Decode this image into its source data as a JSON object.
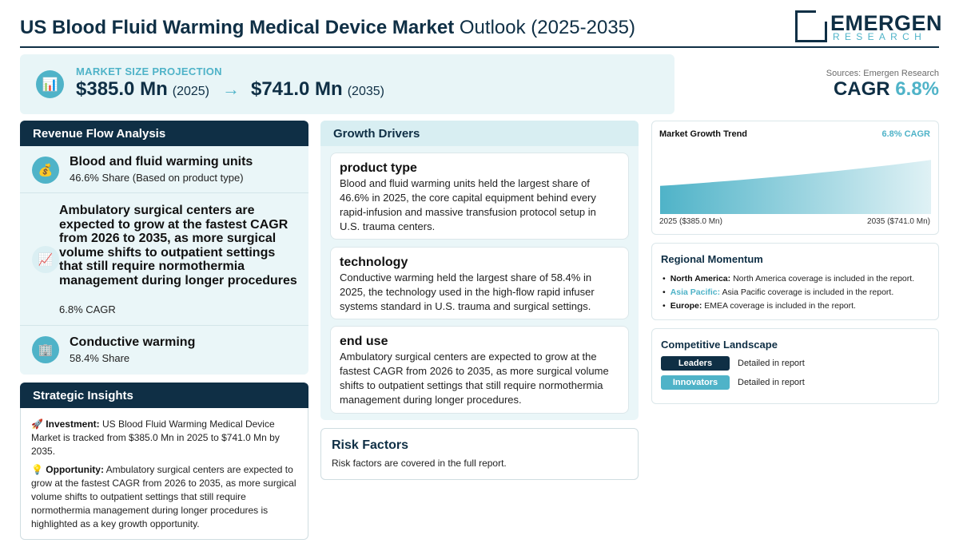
{
  "header": {
    "title_bold": "US Blood Fluid Warming Medical Device Market",
    "title_rest": " Outlook (2025-2035)",
    "logo_name": "EMERGEN",
    "logo_sub": "RESEARCH"
  },
  "hero": {
    "icon": "bar-chart-icon",
    "label": "MARKET SIZE PROJECTION",
    "start_value": "$385.0 Mn",
    "start_year": "(2025)",
    "arrow": "→",
    "end_value": "$741.0 Mn",
    "end_year": "(2035)"
  },
  "summary": {
    "source": "Sources: Emergen Research",
    "cagr_label": "CAGR ",
    "cagr_value": "6.8%"
  },
  "revenue": {
    "heading": "Revenue Flow Analysis",
    "items": [
      {
        "icon": "money-bag-icon",
        "title": "Blood and fluid warming units",
        "sub": "46.6% Share (Based on product type)"
      },
      {
        "icon": "trend-chart-icon",
        "title": "Ambulatory surgical centers are expected to grow at the fastest CAGR from 2026 to 2035, as more surgical volume shifts to outpatient settings that still require normothermia management during longer procedures",
        "sub": "6.8% CAGR"
      },
      {
        "icon": "building-icon",
        "title": "Conductive warming",
        "sub": "58.4% Share"
      }
    ]
  },
  "strategic": {
    "heading": "Strategic Insights",
    "items": [
      {
        "emoji": "🚀",
        "label": "Investment:",
        "text": " US Blood Fluid Warming Medical Device Market is tracked from $385.0 Mn in 2025 to $741.0 Mn by 2035."
      },
      {
        "emoji": "💡",
        "label": "Opportunity:",
        "text": " Ambulatory surgical centers are expected to grow at the fastest CAGR from 2026 to 2035, as more surgical volume shifts to outpatient settings that still require normothermia management during longer procedures is highlighted as a key growth opportunity."
      }
    ]
  },
  "drivers": {
    "heading": "Growth Drivers",
    "items": [
      {
        "title": "product type",
        "text": "Blood and fluid warming units held the largest share of 46.6% in 2025, the core capital equipment behind every rapid-infusion and massive transfusion protocol setup in U.S. trauma centers."
      },
      {
        "title": "technology",
        "text": "Conductive warming held the largest share of 58.4% in 2025, the technology used in the high-flow rapid infuser systems standard in U.S. trauma and surgical settings."
      },
      {
        "title": "end use",
        "text": "Ambulatory surgical centers are expected to grow at the fastest CAGR from 2026 to 2035, as more surgical volume shifts to outpatient settings that still require normothermia management during longer procedures."
      }
    ]
  },
  "risk": {
    "heading": "Risk Factors",
    "text": "Risk factors are covered in the full report."
  },
  "trend": {
    "title": "Market Growth Trend",
    "cagr": "6.8% CAGR",
    "start_label": "2025 ($385.0 Mn)",
    "end_label": "2035 ($741.0 Mn)"
  },
  "chart_data": {
    "type": "area",
    "x": [
      2025,
      2035
    ],
    "values": [
      385.0,
      741.0
    ],
    "title": "Market Growth Trend",
    "unit": "Mn",
    "annotations": [
      "6.8% CAGR"
    ]
  },
  "regional": {
    "heading": "Regional Momentum",
    "items": [
      {
        "label": "North America:",
        "text": " North America coverage is included in the report."
      },
      {
        "label": "Asia Pacific:",
        "text": " Asia Pacific coverage is included in the report."
      },
      {
        "label": "Europe:",
        "text": " EMEA coverage is included in the report."
      }
    ]
  },
  "competitive": {
    "heading": "Competitive Landscape",
    "items": [
      {
        "badge": "Leaders",
        "note": "Detailed in report"
      },
      {
        "badge": "Innovators",
        "note": "Detailed in report"
      }
    ]
  },
  "colors": {
    "navy": "#0f2f45",
    "teal": "#4fb3c8",
    "panel": "#eaf6f8"
  }
}
